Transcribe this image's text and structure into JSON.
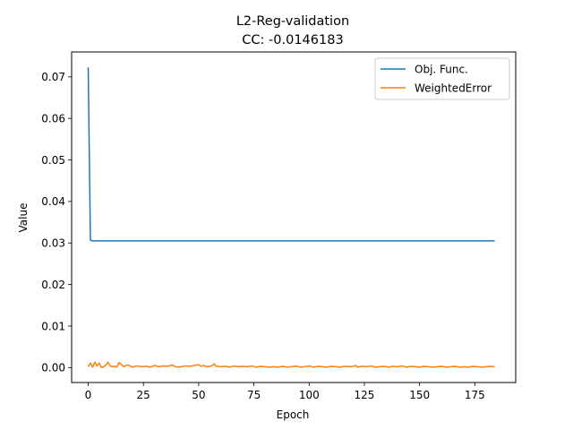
{
  "chart_data": {
    "type": "line",
    "title": "L2-Reg-validation",
    "subtitle": "CC: -0.0146183",
    "xlabel": "Epoch",
    "ylabel": "Value",
    "xlim": [
      -7.5,
      193.5
    ],
    "ylim": [
      -0.0036,
      0.076
    ],
    "xticks": [
      0,
      25,
      50,
      75,
      100,
      125,
      150,
      175
    ],
    "yticks": [
      0.0,
      0.01,
      0.02,
      0.03,
      0.04,
      0.05,
      0.06,
      0.07
    ],
    "ytick_labels": [
      "0.00",
      "0.01",
      "0.02",
      "0.03",
      "0.04",
      "0.05",
      "0.06",
      "0.07"
    ],
    "grid": false,
    "legend_position": "top-right",
    "series": [
      {
        "name": "Obj. Func.",
        "color": "#1f77b4",
        "x": [
          0,
          1,
          2,
          5,
          10,
          25,
          50,
          75,
          100,
          125,
          150,
          175,
          184
        ],
        "y": [
          0.0723,
          0.0307,
          0.0305,
          0.0305,
          0.0305,
          0.0305,
          0.0305,
          0.0305,
          0.0305,
          0.0305,
          0.0305,
          0.0305,
          0.0305
        ]
      },
      {
        "name": "WeightedError",
        "color": "#ff7f0e",
        "x": [
          0,
          1,
          2,
          3,
          4,
          5,
          6,
          7,
          8,
          9,
          10,
          11,
          12,
          13,
          14,
          15,
          16,
          17,
          18,
          19,
          20,
          22,
          24,
          26,
          28,
          30,
          32,
          34,
          36,
          38,
          40,
          42,
          44,
          46,
          48,
          50,
          51,
          52,
          54,
          56,
          57,
          58,
          60,
          62,
          64,
          66,
          68,
          70,
          72,
          74,
          76,
          78,
          80,
          82,
          84,
          86,
          88,
          90,
          92,
          94,
          96,
          98,
          100,
          102,
          104,
          106,
          108,
          110,
          112,
          114,
          116,
          118,
          120,
          121,
          122,
          124,
          126,
          128,
          130,
          132,
          134,
          136,
          138,
          140,
          142,
          144,
          146,
          148,
          150,
          152,
          154,
          156,
          158,
          160,
          162,
          164,
          166,
          168,
          170,
          172,
          174,
          176,
          178,
          180,
          182,
          184
        ],
        "y": [
          0.0002,
          0.0011,
          0.0001,
          0.0013,
          0.0004,
          0.0011,
          0.0,
          0.0002,
          0.0006,
          0.0013,
          0.0004,
          0.0002,
          0.0003,
          0.0001,
          0.0012,
          0.0008,
          0.0002,
          0.0005,
          0.0006,
          0.0004,
          0.0001,
          0.0004,
          0.0002,
          0.0003,
          0.0001,
          0.0005,
          0.0002,
          0.0004,
          0.0003,
          0.0006,
          0.0001,
          0.0002,
          0.0004,
          0.0003,
          0.0005,
          0.0007,
          0.0003,
          0.0005,
          0.0002,
          0.0004,
          0.0009,
          0.0003,
          0.0002,
          0.0003,
          0.0001,
          0.0004,
          0.0002,
          0.0003,
          0.0002,
          0.0004,
          0.0001,
          0.0003,
          0.0002,
          0.0001,
          0.0002,
          0.0001,
          0.0003,
          0.0001,
          0.0002,
          0.0004,
          0.0001,
          0.0002,
          0.0004,
          0.0001,
          0.0003,
          0.0002,
          0.0001,
          0.0003,
          0.0002,
          0.0001,
          0.0003,
          0.0002,
          0.0003,
          0.0005,
          0.0001,
          0.0003,
          0.0002,
          0.0004,
          0.0001,
          0.0002,
          0.0003,
          0.0001,
          0.0003,
          0.0002,
          0.0004,
          0.0001,
          0.0003,
          0.0002,
          0.0001,
          0.0003,
          0.0002,
          0.0001,
          0.0002,
          0.0003,
          0.0001,
          0.0002,
          0.0003,
          0.0001,
          0.0002,
          0.0001,
          0.0003,
          0.0002,
          0.0001,
          0.0002,
          0.0003,
          0.0002
        ]
      }
    ]
  }
}
